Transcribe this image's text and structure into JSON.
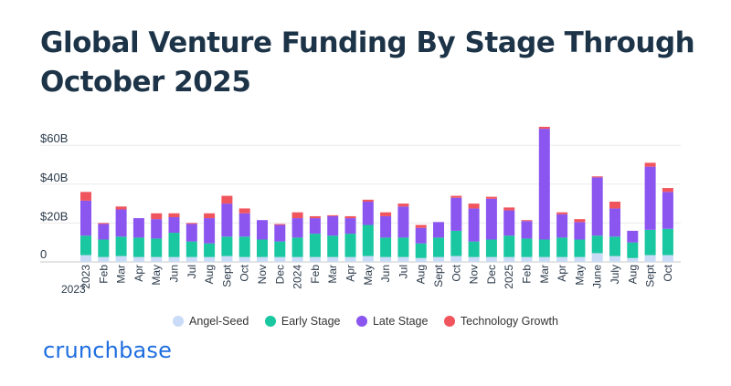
{
  "chart_data": {
    "type": "bar",
    "stacked": true,
    "title": "Global Venture Funding By Stage Through October 2025",
    "xlabel": "",
    "ylabel": "",
    "ylim": [
      0,
      70
    ],
    "y_ticks": [
      {
        "value": 0,
        "label": "0"
      },
      {
        "value": 20,
        "label": "$20B"
      },
      {
        "value": 40,
        "label": "$40B"
      },
      {
        "value": 60,
        "label": "$60B"
      }
    ],
    "year_label": "2023",
    "categories": [
      "2023",
      "Feb",
      "Mar",
      "Apr",
      "May",
      "Jun",
      "Jul",
      "Aug",
      "Sept",
      "Oct",
      "Nov",
      "Dec",
      "2024",
      "Feb",
      "Mar",
      "Apr",
      "May",
      "Jun",
      "Jul",
      "Aug",
      "Sept",
      "Oct",
      "Nov",
      "Dec",
      "2025",
      "Feb",
      "Mar",
      "Apr",
      "May",
      "June",
      "July",
      "Aug",
      "Sept",
      "Oct"
    ],
    "series": [
      {
        "name": "Angel-Seed",
        "color": "#c9dbf6",
        "values": [
          3.5,
          2.5,
          3,
          2.5,
          2.5,
          2.5,
          2.5,
          2.5,
          3,
          2.5,
          2.5,
          2.5,
          2.5,
          2.5,
          2.5,
          2.5,
          3,
          2.5,
          2.5,
          2,
          2.5,
          3,
          2.5,
          2.5,
          2.5,
          2.5,
          2.5,
          2.5,
          2.5,
          4.5,
          3,
          2,
          3.5,
          3.5
        ]
      },
      {
        "name": "Early Stage",
        "color": "#19c7a0",
        "values": [
          10,
          9,
          10,
          10,
          9.5,
          12.5,
          8,
          7,
          10,
          10.5,
          9,
          8,
          10,
          12,
          11,
          12,
          16,
          10,
          10,
          7.5,
          10,
          13,
          8,
          9,
          11,
          9.5,
          9,
          10,
          9,
          9,
          10,
          8,
          13,
          13.5
        ]
      },
      {
        "name": "Late Stage",
        "color": "#8b55f0",
        "values": [
          18,
          8,
          14,
          10,
          10,
          8,
          9,
          13,
          17,
          12,
          10,
          8.5,
          10,
          8,
          10,
          8,
          12,
          11,
          16,
          8,
          8,
          17,
          17,
          21,
          13,
          9,
          57,
          12,
          9,
          30,
          14.5,
          6,
          32.5,
          19
        ]
      },
      {
        "name": "Technology Growth",
        "color": "#f0555e",
        "values": [
          4.5,
          0.5,
          1.5,
          0,
          3,
          2,
          0.5,
          2.5,
          4,
          2.5,
          0,
          0.5,
          3,
          1,
          0.5,
          1,
          1,
          2,
          1.5,
          1.5,
          0,
          1,
          2.5,
          1,
          1.5,
          0.5,
          1,
          1,
          1.5,
          0.5,
          3.5,
          0,
          2,
          2
        ]
      }
    ]
  },
  "legend": {
    "items": [
      "Angel-Seed",
      "Early Stage",
      "Late Stage",
      "Technology Growth"
    ]
  },
  "brand": {
    "logo_text": "crunchbase",
    "color": "#1f6ee0"
  }
}
